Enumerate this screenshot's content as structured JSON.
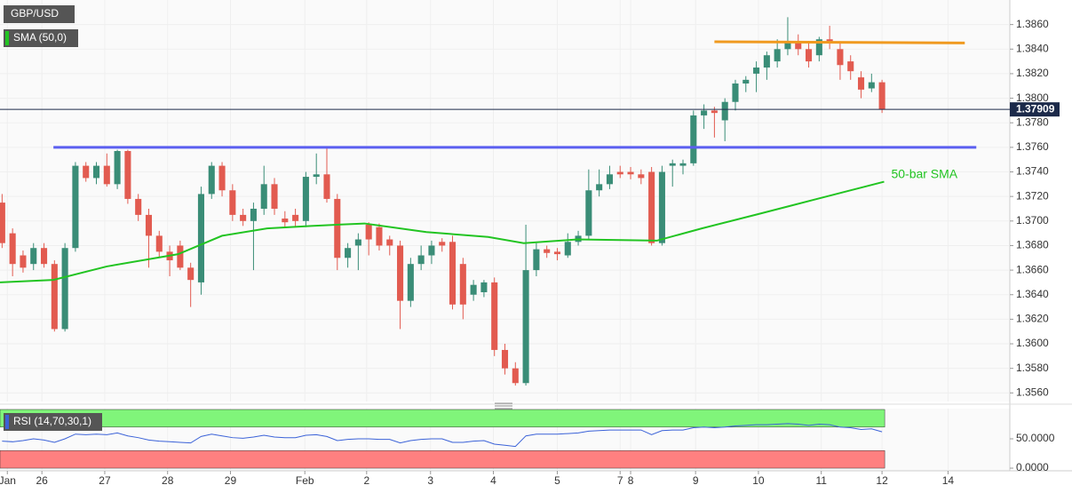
{
  "chart_data": {
    "type": "candlestick",
    "legend": {
      "symbol": "GBP/USD",
      "sma": "SMA (50,0)",
      "rsi": "RSI (14,70,30,1)"
    },
    "up_color": "#3a8d77",
    "down_color": "#e25b50",
    "x": [
      0,
      1,
      2,
      3,
      4,
      5,
      6,
      7,
      8,
      9,
      10,
      11,
      12,
      13,
      14,
      15,
      16,
      17,
      18,
      19,
      20,
      21,
      22,
      23,
      24,
      25,
      26,
      27,
      28,
      29,
      30,
      31,
      32,
      33,
      34,
      35,
      36,
      37,
      38,
      39,
      40,
      41,
      42,
      43,
      44,
      45,
      46,
      47,
      48,
      49,
      50,
      51,
      52,
      53,
      54,
      55,
      56,
      57,
      58,
      59,
      60,
      61,
      62,
      63,
      64,
      65,
      66,
      67,
      68,
      69,
      70,
      71,
      72,
      73,
      74,
      75,
      76,
      77,
      78,
      79,
      80,
      81,
      82,
      83,
      84
    ],
    "open": [
      1.3715,
      1.369,
      1.3672,
      1.3665,
      1.3678,
      1.3665,
      1.3612,
      1.3678,
      1.3745,
      1.3735,
      1.3745,
      1.373,
      1.3757,
      1.3718,
      1.3705,
      1.3688,
      1.3675,
      1.368,
      1.3662,
      1.365,
      1.3722,
      1.3745,
      1.3725,
      1.3705,
      1.37,
      1.371,
      1.373,
      1.3702,
      1.3705,
      1.37,
      1.3736,
      1.3738,
      1.3718,
      1.367,
      1.368,
      1.3697,
      1.3695,
      1.3685,
      1.368,
      1.3635,
      1.3665,
      1.3672,
      1.3683,
      1.3683,
      1.3665,
      1.364,
      1.3642,
      1.365,
      1.3595,
      1.358,
      1.3568,
      1.366,
      1.3677,
      1.3675,
      1.3672,
      1.3683,
      1.3688,
      1.3725,
      1.373,
      1.374,
      1.374,
      1.3738,
      1.374,
      1.3682,
      1.3745,
      1.3745,
      1.3747,
      1.3786,
      1.379,
      1.3782,
      1.3797,
      1.3812,
      1.382,
      1.3825,
      1.383,
      1.384,
      1.3845,
      1.384,
      1.3835,
      1.3848,
      1.384,
      1.383,
      1.3817,
      1.3808,
      1.3813
    ],
    "high": [
      1.3722,
      1.3694,
      1.3676,
      1.3682,
      1.3682,
      1.3668,
      1.3682,
      1.3748,
      1.3748,
      1.3748,
      1.3755,
      1.3758,
      1.3758,
      1.3722,
      1.371,
      1.3692,
      1.368,
      1.3684,
      1.3666,
      1.3728,
      1.3748,
      1.3748,
      1.373,
      1.371,
      1.3715,
      1.3745,
      1.3735,
      1.3708,
      1.371,
      1.374,
      1.3755,
      1.376,
      1.3722,
      1.3682,
      1.369,
      1.3699,
      1.3698,
      1.3688,
      1.3684,
      1.367,
      1.368,
      1.3684,
      1.3686,
      1.3688,
      1.367,
      1.3652,
      1.3652,
      1.3654,
      1.36,
      1.3585,
      1.3697,
      1.3682,
      1.368,
      1.3678,
      1.369,
      1.3692,
      1.3742,
      1.3742,
      1.3745,
      1.3745,
      1.3744,
      1.3742,
      1.3744,
      1.3745,
      1.375,
      1.375,
      1.379,
      1.3795,
      1.3793,
      1.38,
      1.3815,
      1.3818,
      1.383,
      1.3838,
      1.3848,
      1.3866,
      1.3852,
      1.3845,
      1.385,
      1.3859,
      1.3846,
      1.3835,
      1.3822,
      1.382,
      1.3815
    ],
    "low": [
      1.3678,
      1.3655,
      1.3658,
      1.366,
      1.3662,
      1.361,
      1.361,
      1.3675,
      1.3732,
      1.373,
      1.3728,
      1.3726,
      1.3714,
      1.37,
      1.3662,
      1.367,
      1.3655,
      1.366,
      1.363,
      1.364,
      1.3718,
      1.372,
      1.37,
      1.3696,
      1.366,
      1.3705,
      1.3705,
      1.3695,
      1.3695,
      1.3695,
      1.373,
      1.3715,
      1.366,
      1.3662,
      1.366,
      1.3672,
      1.3676,
      1.3672,
      1.3612,
      1.363,
      1.366,
      1.3665,
      1.3675,
      1.3628,
      1.362,
      1.3635,
      1.3638,
      1.359,
      1.3575,
      1.3566,
      1.3566,
      1.3655,
      1.367,
      1.3668,
      1.367,
      1.368,
      1.3685,
      1.372,
      1.3726,
      1.3735,
      1.3734,
      1.373,
      1.368,
      1.368,
      1.3728,
      1.3738,
      1.3745,
      1.3775,
      1.3768,
      1.3765,
      1.379,
      1.3805,
      1.3805,
      1.3815,
      1.3825,
      1.3835,
      1.3835,
      1.3825,
      1.383,
      1.384,
      1.3815,
      1.3815,
      1.38,
      1.3805,
      1.3788
    ],
    "close": [
      1.3682,
      1.3665,
      1.3662,
      1.3678,
      1.3665,
      1.3612,
      1.3678,
      1.3745,
      1.3735,
      1.3745,
      1.373,
      1.3757,
      1.3718,
      1.3705,
      1.3688,
      1.3675,
      1.3668,
      1.3662,
      1.3652,
      1.3722,
      1.3745,
      1.3725,
      1.3705,
      1.37,
      1.371,
      1.373,
      1.371,
      1.3699,
      1.37,
      1.3736,
      1.3738,
      1.3718,
      1.367,
      1.3678,
      1.3685,
      1.3685,
      1.368,
      1.368,
      1.3635,
      1.3665,
      1.3672,
      1.368,
      1.368,
      1.3632,
      1.3632,
      1.3648,
      1.365,
      1.3595,
      1.358,
      1.3568,
      1.366,
      1.3677,
      1.3674,
      1.3673,
      1.3683,
      1.3688,
      1.3725,
      1.373,
      1.3738,
      1.3738,
      1.3738,
      1.3735,
      1.3682,
      1.374,
      1.3747,
      1.3747,
      1.3786,
      1.379,
      1.3788,
      1.3797,
      1.3812,
      1.3815,
      1.3825,
      1.3835,
      1.384,
      1.3845,
      1.384,
      1.383,
      1.3848,
      1.3845,
      1.3827,
      1.3822,
      1.3807,
      1.3813,
      1.3791
    ],
    "sma": {
      "color": "#22c422",
      "x": [
        -0.2,
        4.9,
        10,
        16.8,
        21,
        25.3,
        29.5,
        34.6,
        40.5,
        46.4,
        49.8,
        54.9,
        62.5,
        66.8,
        71.9,
        77.8,
        84.2
      ],
      "values": [
        1.365,
        1.3652,
        1.3663,
        1.3673,
        1.3688,
        1.3694,
        1.3696,
        1.3698,
        1.3691,
        1.3687,
        1.3682,
        1.3685,
        1.3684,
        1.3694,
        1.3705,
        1.3718,
        1.3732
      ]
    },
    "annotation": "50-bar SMA",
    "lines": [
      {
        "color": "#5b5ff0",
        "x": [
          4.9,
          93
        ],
        "values": [
          1.376,
          1.376
        ]
      },
      {
        "color": "#f09a20",
        "x": [
          68,
          91.9
        ],
        "values": [
          1.3846,
          1.3845
        ]
      }
    ],
    "last_price": 1.37909,
    "xlim": [
      -0.2,
      96.2
    ],
    "xticks": [
      {
        "value": 0.5,
        "label": "Jan"
      },
      {
        "value": 3.8,
        "label": "26"
      },
      {
        "value": 9.8,
        "label": "27"
      },
      {
        "value": 15.8,
        "label": "28"
      },
      {
        "value": 21.8,
        "label": "29"
      },
      {
        "value": 28.9,
        "label": "Feb"
      },
      {
        "value": 34.8,
        "label": "2"
      },
      {
        "value": 40.9,
        "label": "3"
      },
      {
        "value": 46.9,
        "label": "4"
      },
      {
        "value": 53,
        "label": "5"
      },
      {
        "value": 59,
        "label": "7"
      },
      {
        "value": 60,
        "label": "8"
      },
      {
        "value": 66.2,
        "label": "9"
      },
      {
        "value": 72.2,
        "label": "10"
      },
      {
        "value": 78.2,
        "label": "11"
      },
      {
        "value": 84,
        "label": "12"
      },
      {
        "value": 90.3,
        "label": "14"
      }
    ],
    "ylim": [
      1.3553,
      1.388
    ],
    "yticks": [
      {
        "value": 1.356,
        "label": "1.3560"
      },
      {
        "value": 1.358,
        "label": "1.3580"
      },
      {
        "value": 1.36,
        "label": "1.3600"
      },
      {
        "value": 1.362,
        "label": "1.3620"
      },
      {
        "value": 1.364,
        "label": "1.3640"
      },
      {
        "value": 1.366,
        "label": "1.3660"
      },
      {
        "value": 1.368,
        "label": "1.3680"
      },
      {
        "value": 1.37,
        "label": "1.3700"
      },
      {
        "value": 1.372,
        "label": "1.3720"
      },
      {
        "value": 1.374,
        "label": "1.3740"
      },
      {
        "value": 1.376,
        "label": "1.3760"
      },
      {
        "value": 1.378,
        "label": "1.3780"
      },
      {
        "value": 1.38,
        "label": "1.3800"
      },
      {
        "value": 1.382,
        "label": "1.3820"
      },
      {
        "value": 1.384,
        "label": "1.3840"
      },
      {
        "value": 1.386,
        "label": "1.3860"
      }
    ],
    "grid": true,
    "rsi": {
      "color": "#3b62d8",
      "overbought": 70,
      "oversold": 30,
      "values": [
        46,
        45,
        47,
        50,
        48,
        44,
        50,
        58,
        57,
        58,
        57,
        60,
        55,
        52,
        48,
        46,
        45,
        44,
        43,
        54,
        58,
        55,
        52,
        51,
        53,
        56,
        53,
        52,
        52,
        56,
        57,
        54,
        47,
        49,
        50,
        50,
        49,
        49,
        43,
        47,
        49,
        50,
        50,
        44,
        44,
        46,
        47,
        41,
        39,
        37,
        55,
        58,
        58,
        58,
        59,
        60,
        63,
        64,
        65,
        65,
        65,
        65,
        57,
        64,
        65,
        65,
        69,
        70,
        69,
        70,
        72,
        73,
        74,
        74,
        75,
        76,
        75,
        73,
        75,
        74,
        70,
        69,
        66,
        67,
        62
      ],
      "ylim": [
        -4.5,
        101.5
      ],
      "yticks": [
        {
          "value": 50,
          "label": "50.0000"
        },
        {
          "value": 0,
          "label": "0.0000"
        }
      ]
    }
  }
}
